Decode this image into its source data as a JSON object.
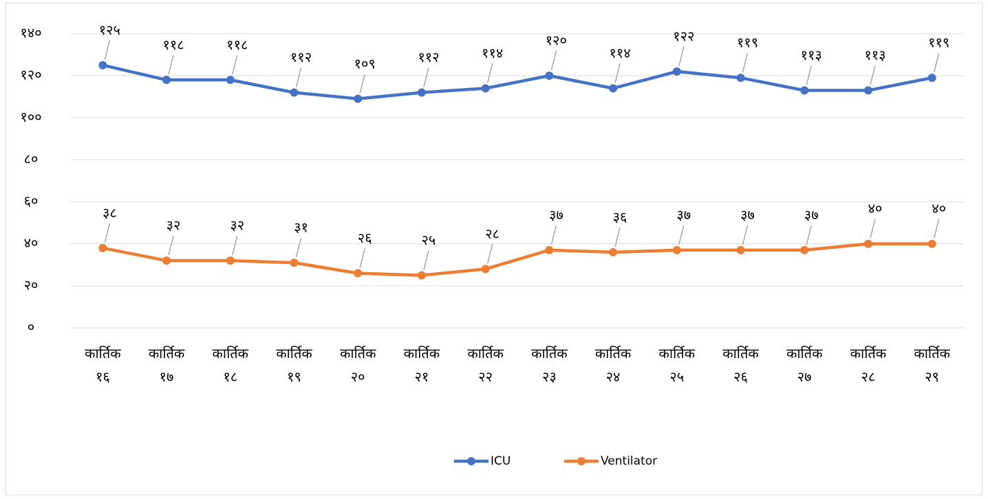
{
  "chart_data": {
    "type": "line",
    "categories": [
      "कार्तिक १६",
      "कार्तिक १७",
      "कार्तिक १८",
      "कार्तिक १९",
      "कार्तिक २०",
      "कार्तिक २१",
      "कार्तिक २२",
      "कार्तिक २३",
      "कार्तिक २४",
      "कार्तिक २५",
      "कार्तिक २६",
      "कार्तिक २७",
      "कार्तिक २८",
      "कार्तिक २९"
    ],
    "series": [
      {
        "name": "ICU",
        "color": "#4472c4",
        "values": [
          125,
          118,
          118,
          112,
          109,
          112,
          114,
          120,
          114,
          122,
          119,
          113,
          113,
          119
        ],
        "value_labels": [
          "१२५",
          "११८",
          "११८",
          "११२",
          "१०९",
          "११२",
          "११४",
          "१२०",
          "११४",
          "१२२",
          "११९",
          "११३",
          "११३",
          "११९"
        ]
      },
      {
        "name": "Ventilator",
        "color": "#ed7d31",
        "values": [
          38,
          32,
          32,
          31,
          26,
          25,
          28,
          37,
          36,
          37,
          37,
          37,
          40,
          40
        ],
        "value_labels": [
          "३८",
          "३२",
          "३२",
          "३१",
          "२६",
          "२५",
          "२८",
          "३७",
          "३६",
          "३७",
          "३७",
          "३७",
          "४०",
          "४०"
        ]
      }
    ],
    "ylim": [
      0,
      140
    ],
    "yticks": [
      {
        "value": 0,
        "label": "०"
      },
      {
        "value": 20,
        "label": "२०"
      },
      {
        "value": 40,
        "label": "४०"
      },
      {
        "value": 60,
        "label": "६०"
      },
      {
        "value": 80,
        "label": "८०"
      },
      {
        "value": 100,
        "label": "१००"
      },
      {
        "value": 120,
        "label": "१२०"
      },
      {
        "value": 140,
        "label": "१४०"
      }
    ],
    "grid": true,
    "legend": "bottom"
  }
}
